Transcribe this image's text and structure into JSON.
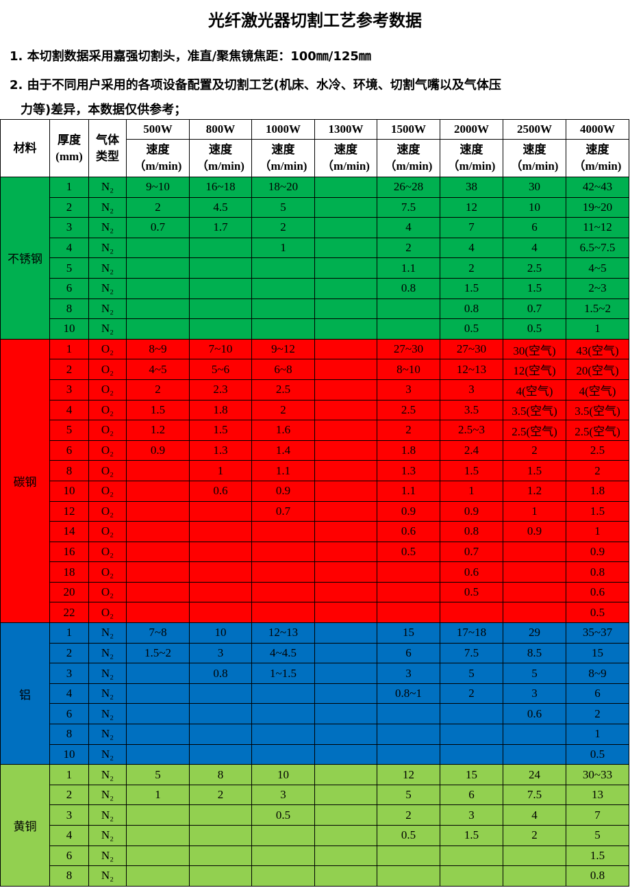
{
  "title": "光纤激光器切割工艺参考数据",
  "notes": [
    "1. 本切割数据采用嘉强切割头，准直/聚焦镜焦距：100㎜/125㎜",
    "2. 由于不同用户采用的各项设备配置及切割工艺(机床、水冷、环境、切割气嘴以及气体压",
    "力等)差异，本数据仅供参考；"
  ],
  "header": {
    "material": "材料",
    "thickness": "厚度",
    "thickness_unit": "(mm)",
    "gas": "气体",
    "gas2": "类型",
    "powers": [
      "500W",
      "800W",
      "1000W",
      "1300W",
      "1500W",
      "2000W",
      "2500W",
      "4000W"
    ],
    "speed": "速度",
    "speed_unit": "（m/min)"
  },
  "groups": [
    {
      "material": "不锈钢",
      "color": "#00b050",
      "gas": "N₂",
      "rows": [
        [
          "1",
          "9~10",
          "16~18",
          "18~20",
          "",
          "26~28",
          "38",
          "30",
          "42~43"
        ],
        [
          "2",
          "2",
          "4.5",
          "5",
          "",
          "7.5",
          "12",
          "10",
          "19~20"
        ],
        [
          "3",
          "0.7",
          "1.7",
          "2",
          "",
          "4",
          "7",
          "6",
          "11~12"
        ],
        [
          "4",
          "",
          "",
          "1",
          "",
          "2",
          "4",
          "4",
          "6.5~7.5"
        ],
        [
          "5",
          "",
          "",
          "",
          "",
          "1.1",
          "2",
          "2.5",
          "4~5"
        ],
        [
          "6",
          "",
          "",
          "",
          "",
          "0.8",
          "1.5",
          "1.5",
          "2~3"
        ],
        [
          "8",
          "",
          "",
          "",
          "",
          "",
          "0.8",
          "0.7",
          "1.5~2"
        ],
        [
          "10",
          "",
          "",
          "",
          "",
          "",
          "0.5",
          "0.5",
          "1"
        ]
      ]
    },
    {
      "material": "碳钢",
      "color": "#ff0000",
      "gas": "O₂",
      "rows": [
        [
          "1",
          "8~9",
          "7~10",
          "9~12",
          "",
          "27~30",
          "27~30",
          "30(空气)",
          "43(空气)"
        ],
        [
          "2",
          "4~5",
          "5~6",
          "6~8",
          "",
          "8~10",
          "12~13",
          "12(空气)",
          "20(空气)"
        ],
        [
          "3",
          "2",
          "2.3",
          "2.5",
          "",
          "3",
          "3",
          "4(空气)",
          "4(空气)"
        ],
        [
          "4",
          "1.5",
          "1.8",
          "2",
          "",
          "2.5",
          "3.5",
          "3.5(空气)",
          "3.5(空气)"
        ],
        [
          "5",
          "1.2",
          "1.5",
          "1.6",
          "",
          "2",
          "2.5~3",
          "2.5(空气)",
          "2.5(空气)"
        ],
        [
          "6",
          "0.9",
          "1.3",
          "1.4",
          "",
          "1.8",
          "2.4",
          "2",
          "2.5"
        ],
        [
          "8",
          "",
          "1",
          "1.1",
          "",
          "1.3",
          "1.5",
          "1.5",
          "2"
        ],
        [
          "10",
          "",
          "0.6",
          "0.9",
          "",
          "1.1",
          "1",
          "1.2",
          "1.8"
        ],
        [
          "12",
          "",
          "",
          "0.7",
          "",
          "0.9",
          "0.9",
          "1",
          "1.5"
        ],
        [
          "14",
          "",
          "",
          "",
          "",
          "0.6",
          "0.8",
          "0.9",
          "1"
        ],
        [
          "16",
          "",
          "",
          "",
          "",
          "0.5",
          "0.7",
          "",
          "0.9"
        ],
        [
          "18",
          "",
          "",
          "",
          "",
          "",
          "0.6",
          "",
          "0.8"
        ],
        [
          "20",
          "",
          "",
          "",
          "",
          "",
          "0.5",
          "",
          "0.6"
        ],
        [
          "22",
          "",
          "",
          "",
          "",
          "",
          "",
          "",
          "0.5"
        ]
      ]
    },
    {
      "material": "铝",
      "color": "#0070c0",
      "gas": "N₂",
      "rows": [
        [
          "1",
          "7~8",
          "10",
          "12~13",
          "",
          "15",
          "17~18",
          "29",
          "35~37"
        ],
        [
          "2",
          "1.5~2",
          "3",
          "4~4.5",
          "",
          "6",
          "7.5",
          "8.5",
          "15"
        ],
        [
          "3",
          "",
          "0.8",
          "1~1.5",
          "",
          "3",
          "5",
          "5",
          "8~9"
        ],
        [
          "4",
          "",
          "",
          "",
          "",
          "0.8~1",
          "2",
          "3",
          "6"
        ],
        [
          "6",
          "",
          "",
          "",
          "",
          "",
          "",
          "0.6",
          "2"
        ],
        [
          "8",
          "",
          "",
          "",
          "",
          "",
          "",
          "",
          "1"
        ],
        [
          "10",
          "",
          "",
          "",
          "",
          "",
          "",
          "",
          "0.5"
        ]
      ]
    },
    {
      "material": "黄铜",
      "color": "#92d050",
      "gas": "N₂",
      "rows": [
        [
          "1",
          "5",
          "8",
          "10",
          "",
          "12",
          "15",
          "24",
          "30~33"
        ],
        [
          "2",
          "1",
          "2",
          "3",
          "",
          "5",
          "6",
          "7.5",
          "13"
        ],
        [
          "3",
          "",
          "",
          "0.5",
          "",
          "2",
          "3",
          "4",
          "7"
        ],
        [
          "4",
          "",
          "",
          "",
          "",
          "0.5",
          "1.5",
          "2",
          "5"
        ],
        [
          "6",
          "",
          "",
          "",
          "",
          "",
          "",
          "",
          "1.5"
        ],
        [
          "8",
          "",
          "",
          "",
          "",
          "",
          "",
          "",
          "0.8"
        ]
      ]
    }
  ]
}
